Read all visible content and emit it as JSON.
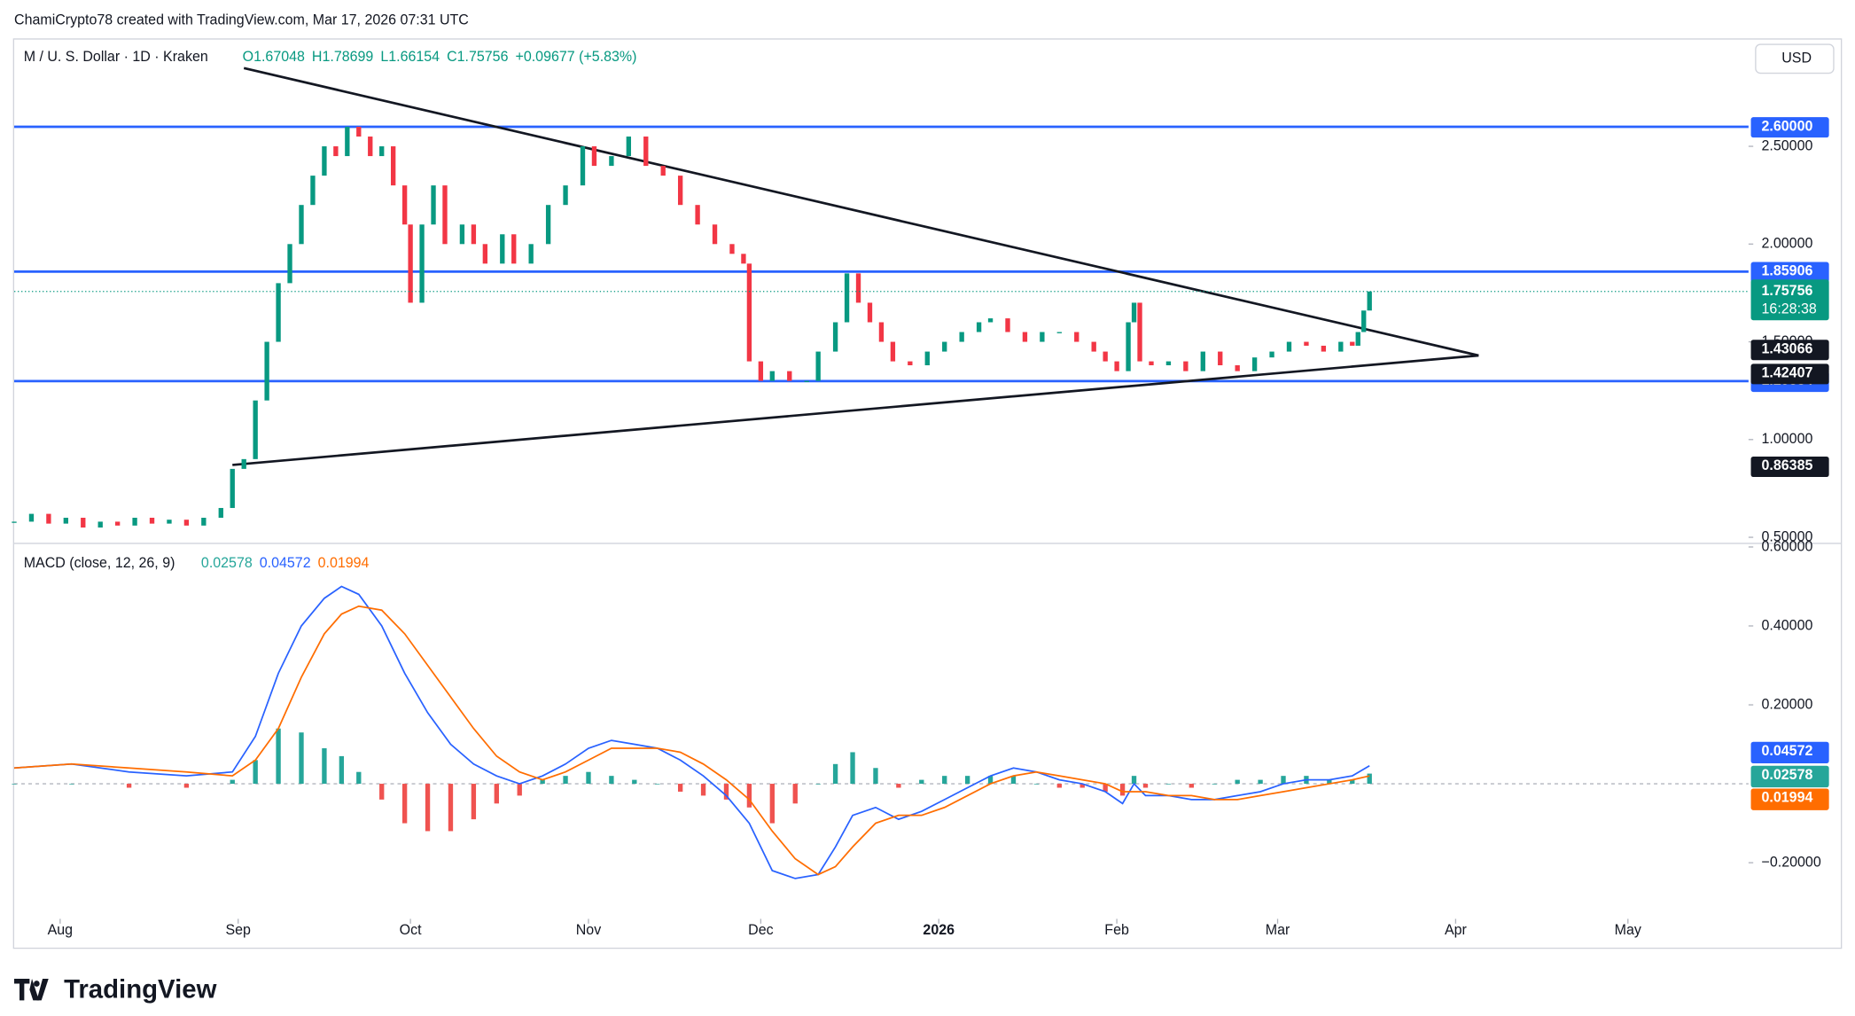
{
  "header": "ChamiCrypto78 created with TradingView.com, Mar 17, 2026 07:31 UTC",
  "currency": "USD",
  "brand": "TradingView",
  "chart_data": [
    {
      "type": "candlestick",
      "symbol": "M / U. S. Dollar · 1D · Kraken",
      "ohlc": [
        "O1.67048",
        "H1.78699",
        "L1.66154",
        "C1.75756",
        "+0.09677 (+5.83%)"
      ],
      "up_color": "#089981",
      "down_color": "#f23645",
      "x": [
        0,
        3,
        6,
        9,
        12,
        15,
        18,
        21,
        24,
        27,
        30,
        33,
        36,
        38,
        40,
        42,
        44,
        46,
        48,
        50,
        52,
        54,
        56,
        58,
        60,
        62,
        64,
        66,
        68,
        69,
        71,
        73,
        75,
        78,
        80,
        82,
        85,
        87,
        90,
        93,
        96,
        99,
        101,
        104,
        107,
        110,
        113,
        116,
        119,
        122,
        125,
        127,
        128,
        130,
        132,
        135,
        138,
        140,
        143,
        145,
        147,
        149,
        151,
        153,
        156,
        159,
        162,
        165,
        168,
        170,
        173,
        176,
        179,
        182,
        185,
        188,
        190,
        192,
        194,
        195,
        196,
        198,
        201,
        204,
        207,
        210,
        213,
        216,
        219,
        222,
        225,
        228,
        231,
        233,
        234,
        235,
        236
      ],
      "values": [
        0.58,
        0.62,
        0.57,
        0.6,
        0.55,
        0.58,
        0.56,
        0.6,
        0.57,
        0.59,
        0.56,
        0.6,
        0.65,
        0.85,
        0.9,
        1.2,
        1.5,
        1.8,
        2.0,
        2.2,
        2.35,
        2.5,
        2.45,
        2.6,
        2.55,
        2.45,
        2.5,
        2.3,
        2.1,
        1.7,
        2.1,
        2.3,
        2.0,
        2.1,
        2.0,
        1.9,
        2.05,
        1.9,
        2.0,
        2.2,
        2.3,
        2.5,
        2.4,
        2.45,
        2.55,
        2.4,
        2.35,
        2.2,
        2.1,
        2.0,
        1.95,
        1.9,
        1.4,
        1.3,
        1.35,
        1.3,
        1.3,
        1.45,
        1.6,
        1.85,
        1.7,
        1.6,
        1.5,
        1.4,
        1.38,
        1.45,
        1.5,
        1.55,
        1.6,
        1.62,
        1.55,
        1.5,
        1.55,
        1.55,
        1.5,
        1.45,
        1.4,
        1.35,
        1.6,
        1.7,
        1.4,
        1.38,
        1.4,
        1.35,
        1.45,
        1.38,
        1.35,
        1.42,
        1.45,
        1.5,
        1.48,
        1.45,
        1.5,
        1.48,
        1.55,
        1.66,
        1.75756
      ],
      "countdown": "16:28:38",
      "last_color": "#089981",
      "xlim": [
        0,
        302
      ],
      "xticks": [
        {
          "value": 8,
          "label": "Aug"
        },
        {
          "value": 39,
          "label": "Sep"
        },
        {
          "value": 69,
          "label": "Oct"
        },
        {
          "value": 100,
          "label": "Nov"
        },
        {
          "value": 130,
          "label": "Dec"
        },
        {
          "value": 161,
          "label": "2026"
        },
        {
          "value": 192,
          "label": "Feb"
        },
        {
          "value": 220,
          "label": "Mar"
        },
        {
          "value": 251,
          "label": "Apr"
        },
        {
          "value": 281,
          "label": "May"
        }
      ],
      "ylim": [
        0.475,
        3.046
      ],
      "yticks": [
        {
          "value": 0.5,
          "label": "0.50000"
        },
        {
          "value": 1,
          "label": "1.00000"
        },
        {
          "value": 1.5,
          "label": "1.50000"
        },
        {
          "value": 2,
          "label": "2.00000"
        },
        {
          "value": 2.5,
          "label": "2.50000"
        }
      ],
      "levels": [
        {
          "value": 2.6,
          "label": "2.60000",
          "color": "#2962ff"
        },
        {
          "value": 1.85906,
          "color": "#2962ff"
        },
        {
          "value": 1.29884,
          "color": "#2962ff"
        }
      ],
      "trend_tags": [
        1.43066,
        1.42407,
        0.86385
      ],
      "trendlines": [
        {
          "x": [
            40,
            255
          ],
          "values": [
            2.9,
            1.43
          ]
        },
        {
          "x": [
            38,
            255
          ],
          "values": [
            0.87,
            1.43
          ]
        }
      ]
    },
    {
      "type": "macd",
      "title": "MACD (close, 12, 26, 9)",
      "x": [
        0,
        10,
        20,
        30,
        38,
        42,
        46,
        50,
        54,
        57,
        60,
        64,
        68,
        72,
        76,
        80,
        84,
        88,
        92,
        96,
        100,
        104,
        108,
        112,
        116,
        120,
        124,
        128,
        132,
        136,
        140,
        143,
        146,
        150,
        154,
        158,
        162,
        166,
        170,
        174,
        178,
        182,
        186,
        190,
        193,
        195,
        197,
        201,
        205,
        209,
        213,
        217,
        221,
        225,
        229,
        233,
        236
      ],
      "series": [
        {
          "name": "Histogram",
          "color": "#26a69a",
          "neg_color": "#ef5350",
          "values": [
            0,
            0,
            -0.01,
            -0.01,
            0.01,
            0.06,
            0.14,
            0.13,
            0.09,
            0.07,
            0.03,
            -0.04,
            -0.1,
            -0.12,
            -0.12,
            -0.09,
            -0.05,
            -0.03,
            0.01,
            0.02,
            0.03,
            0.02,
            0.01,
            0,
            -0.02,
            -0.03,
            -0.04,
            -0.06,
            -0.1,
            -0.05,
            0,
            0.05,
            0.08,
            0.04,
            -0.01,
            0.01,
            0.02,
            0.02,
            0.02,
            0.02,
            0,
            -0.01,
            -0.01,
            -0.02,
            -0.03,
            0.02,
            -0.01,
            0,
            -0.01,
            0,
            0.01,
            0.01,
            0.02,
            0.02,
            0.01,
            0.01,
            0.02578
          ]
        },
        {
          "name": "MACD",
          "color": "#2962ff",
          "values": [
            0.04,
            0.05,
            0.03,
            0.02,
            0.03,
            0.12,
            0.28,
            0.4,
            0.47,
            0.5,
            0.48,
            0.4,
            0.28,
            0.18,
            0.1,
            0.05,
            0.02,
            0,
            0.02,
            0.05,
            0.09,
            0.11,
            0.1,
            0.09,
            0.06,
            0.02,
            -0.03,
            -0.1,
            -0.22,
            -0.24,
            -0.23,
            -0.16,
            -0.08,
            -0.06,
            -0.09,
            -0.07,
            -0.04,
            -0.01,
            0.02,
            0.04,
            0.03,
            0.01,
            0,
            -0.02,
            -0.05,
            0,
            -0.03,
            -0.03,
            -0.04,
            -0.04,
            -0.03,
            -0.02,
            0,
            0.01,
            0.01,
            0.02,
            0.04572
          ]
        },
        {
          "name": "Signal",
          "color": "#ff6d00",
          "values": [
            0.04,
            0.05,
            0.04,
            0.03,
            0.02,
            0.06,
            0.14,
            0.27,
            0.38,
            0.43,
            0.45,
            0.44,
            0.38,
            0.3,
            0.22,
            0.14,
            0.07,
            0.03,
            0.01,
            0.03,
            0.06,
            0.09,
            0.09,
            0.09,
            0.08,
            0.05,
            0.01,
            -0.04,
            -0.12,
            -0.19,
            -0.23,
            -0.21,
            -0.16,
            -0.1,
            -0.08,
            -0.08,
            -0.06,
            -0.03,
            0,
            0.02,
            0.03,
            0.02,
            0.01,
            0,
            -0.02,
            -0.02,
            -0.02,
            -0.03,
            -0.03,
            -0.04,
            -0.04,
            -0.03,
            -0.02,
            -0.01,
            0,
            0.01,
            0.01994
          ]
        }
      ],
      "ylim": [
        -0.324,
        0.6
      ],
      "yticks": [
        {
          "value": -0.2,
          "label": "−0.20000"
        },
        {
          "value": 0.2,
          "label": "0.20000"
        },
        {
          "value": 0.4,
          "label": "0.40000"
        },
        {
          "value": 0.6,
          "label": "0.60000"
        }
      ]
    }
  ]
}
